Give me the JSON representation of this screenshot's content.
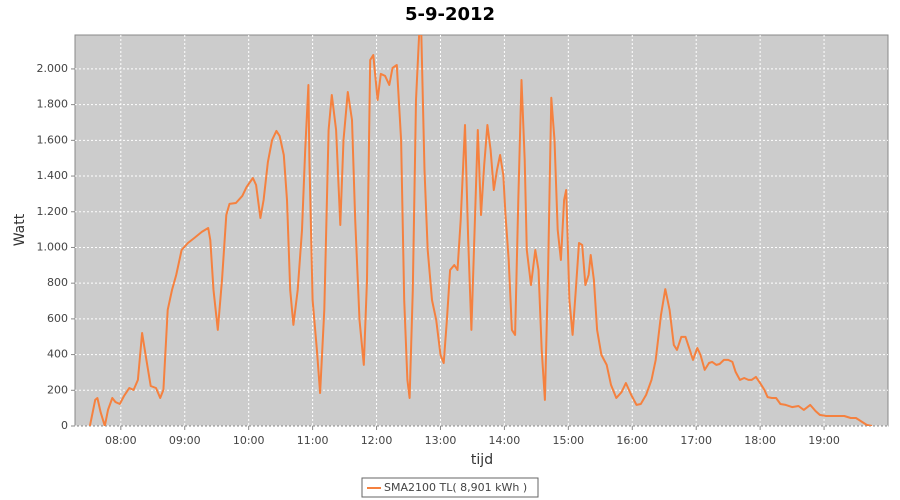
{
  "chart_data": {
    "type": "line",
    "title": "5-9-2012",
    "x_label": "tijd",
    "y_label": "Watt",
    "x": [
      "07:31",
      "07:36",
      "07:38",
      "07:41",
      "07:45",
      "07:48",
      "07:52",
      "07:55",
      "07:59",
      "08:03",
      "08:08",
      "08:12",
      "08:16",
      "08:20",
      "08:24",
      "08:28",
      "08:33",
      "08:37",
      "08:40",
      "08:44",
      "08:48",
      "08:52",
      "08:57",
      "09:03",
      "09:09",
      "09:16",
      "09:22",
      "09:24",
      "09:27",
      "09:31",
      "09:35",
      "09:39",
      "09:42",
      "09:48",
      "09:54",
      "09:58",
      "10:04",
      "10:07",
      "10:11",
      "10:14",
      "10:18",
      "10:22",
      "10:26",
      "10:29",
      "10:33",
      "10:36",
      "10:39",
      "10:42",
      "10:46",
      "10:50",
      "10:53",
      "10:56",
      "10:57",
      "11:00",
      "11:04",
      "11:07",
      "11:11",
      "11:15",
      "11:18",
      "11:22",
      "11:26",
      "11:29",
      "11:33",
      "11:37",
      "11:40",
      "11:44",
      "11:48",
      "11:51",
      "11:54",
      "11:57",
      "12:01",
      "12:04",
      "12:08",
      "12:12",
      "12:15",
      "12:19",
      "12:23",
      "12:26",
      "12:29",
      "12:31",
      "12:34",
      "12:37",
      "12:40",
      "12:42",
      "12:45",
      "12:48",
      "12:52",
      "12:56",
      "13:00",
      "13:03",
      "13:06",
      "13:09",
      "13:13",
      "13:16",
      "13:19",
      "13:23",
      "13:26",
      "13:29",
      "13:32",
      "13:35",
      "13:38",
      "13:41",
      "13:44",
      "13:47",
      "13:50",
      "13:53",
      "13:56",
      "13:59",
      "14:01",
      "14:04",
      "14:07",
      "14:10",
      "14:13",
      "14:16",
      "14:19",
      "14:21",
      "14:25",
      "14:29",
      "14:32",
      "14:35",
      "14:38",
      "14:41",
      "14:44",
      "14:47",
      "14:50",
      "14:53",
      "14:56",
      "14:58",
      "15:01",
      "15:04",
      "15:07",
      "15:10",
      "15:13",
      "15:16",
      "15:19",
      "15:21",
      "15:24",
      "15:27",
      "15:31",
      "15:36",
      "15:40",
      "15:45",
      "15:50",
      "15:54",
      "15:59",
      "16:04",
      "16:08",
      "16:13",
      "16:18",
      "16:22",
      "16:27",
      "16:31",
      "16:35",
      "16:39",
      "16:42",
      "16:46",
      "16:50",
      "16:54",
      "16:57",
      "17:01",
      "17:04",
      "17:08",
      "17:12",
      "17:15",
      "17:19",
      "17:22",
      "17:26",
      "17:30",
      "17:34",
      "17:37",
      "17:41",
      "17:45",
      "17:49",
      "17:52",
      "17:56",
      "18:00",
      "18:04",
      "18:07",
      "18:11",
      "18:15",
      "18:19",
      "18:24",
      "18:30",
      "18:36",
      "18:41",
      "18:47",
      "18:52",
      "18:56",
      "19:02",
      "19:08",
      "19:13",
      "19:19",
      "19:25",
      "19:30",
      "19:36",
      "19:40",
      "19:45"
    ],
    "series": [
      {
        "name": "SMA2100 TL( 8,901 kWh )",
        "color": "#f5813f",
        "values": [
          0,
          146,
          157,
          78,
          0,
          90,
          157,
          134,
          123,
          168,
          213,
          202,
          258,
          521,
          370,
          224,
          213,
          157,
          202,
          650,
          762,
          846,
          986,
          1025,
          1053,
          1087,
          1109,
          1042,
          762,
          538,
          818,
          1182,
          1244,
          1249,
          1289,
          1339,
          1389,
          1350,
          1165,
          1266,
          1479,
          1602,
          1653,
          1625,
          1518,
          1266,
          762,
          566,
          762,
          1098,
          1546,
          1910,
          1490,
          706,
          426,
          185,
          650,
          1658,
          1854,
          1658,
          1126,
          1602,
          1871,
          1714,
          1154,
          594,
          342,
          818,
          2050,
          2078,
          1826,
          1972,
          1961,
          1910,
          2006,
          2022,
          1602,
          706,
          258,
          157,
          762,
          1826,
          2200,
          2200,
          1434,
          986,
          706,
          594,
          398,
          353,
          594,
          874,
          902,
          874,
          1154,
          1686,
          1042,
          538,
          1098,
          1658,
          1182,
          1462,
          1686,
          1546,
          1322,
          1434,
          1518,
          1406,
          1182,
          930,
          538,
          510,
          1266,
          1938,
          1490,
          986,
          790,
          986,
          874,
          426,
          146,
          874,
          1838,
          1602,
          1098,
          930,
          1266,
          1322,
          706,
          510,
          762,
          1025,
          1014,
          790,
          846,
          958,
          818,
          538,
          398,
          342,
          230,
          157,
          190,
          241,
          174,
          118,
          123,
          174,
          258,
          370,
          622,
          767,
          650,
          454,
          426,
          499,
          499,
          426,
          370,
          437,
          398,
          314,
          353,
          359,
          342,
          347,
          370,
          370,
          359,
          303,
          258,
          269,
          258,
          258,
          275,
          241,
          202,
          162,
          157,
          157,
          123,
          118,
          106,
          112,
          90,
          118,
          84,
          62,
          56,
          56,
          56,
          56,
          45,
          45,
          22,
          6,
          0
        ]
      }
    ],
    "xlim": [
      "07:17",
      "20:00"
    ],
    "xticks": [
      "08:00",
      "09:00",
      "10:00",
      "11:00",
      "12:00",
      "13:00",
      "14:00",
      "15:00",
      "16:00",
      "17:00",
      "18:00",
      "19:00"
    ],
    "ylim": [
      0,
      2190
    ],
    "yticks": [
      0,
      200,
      400,
      600,
      800,
      {
        "value": 1000,
        "label": "1.000"
      },
      {
        "value": 1200,
        "label": "1.200"
      },
      {
        "value": 1400,
        "label": "1.400"
      },
      {
        "value": 1600,
        "label": "1.600"
      },
      {
        "value": 1800,
        "label": "1.800"
      },
      {
        "value": 2000,
        "label": "2.000"
      }
    ],
    "grid": true,
    "legend": "bottom"
  }
}
